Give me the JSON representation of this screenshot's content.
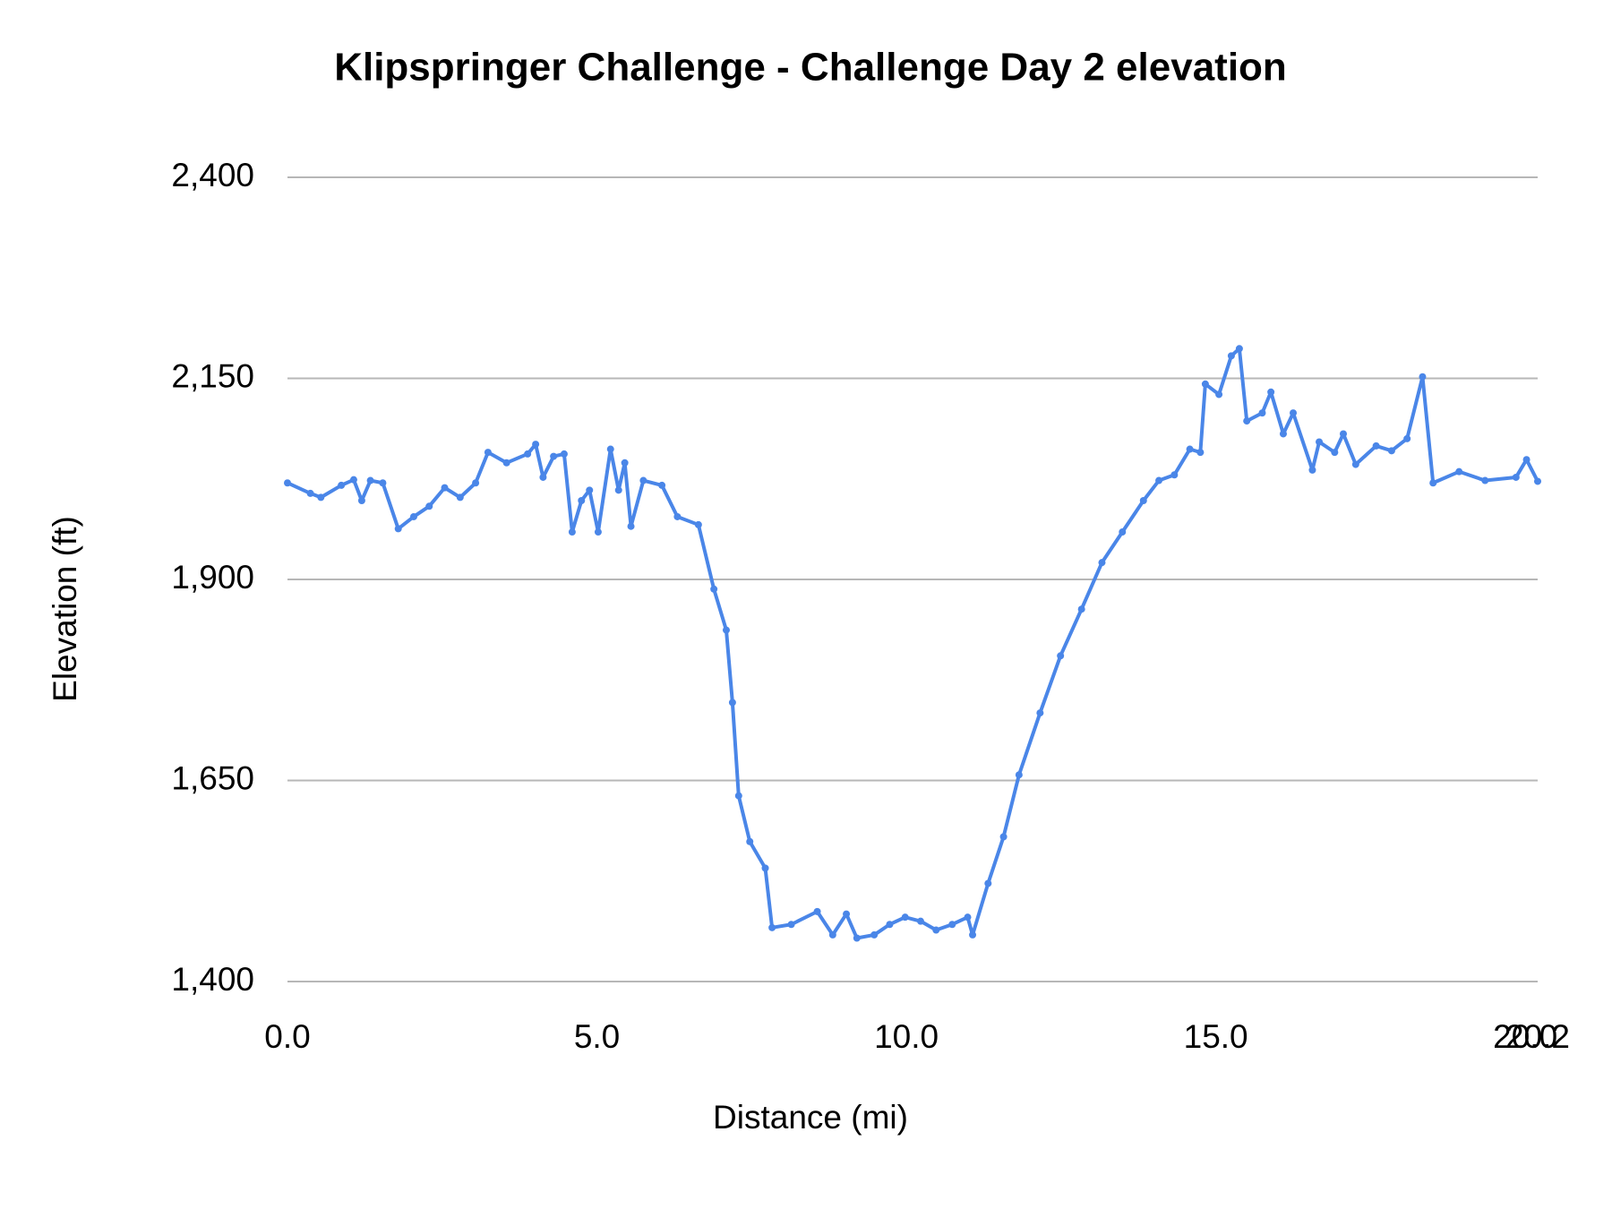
{
  "chart_data": {
    "type": "line",
    "title": "Klipspringer Challenge - Challenge Day 2 elevation",
    "x_label": "Distance (mi)",
    "y_label": "Elevation (ft)",
    "x": [
      0,
      0.37,
      0.54,
      0.87,
      1.07,
      1.2,
      1.34,
      1.54,
      1.79,
      2.04,
      2.29,
      2.54,
      2.79,
      3.04,
      3.24,
      3.54,
      3.88,
      4.01,
      4.13,
      4.3,
      4.47,
      4.6,
      4.75,
      4.88,
      5.02,
      5.22,
      5.35,
      5.45,
      5.55,
      5.75,
      6.05,
      6.3,
      6.64,
      6.89,
      7.09,
      7.19,
      7.29,
      7.47,
      7.72,
      7.83,
      8.14,
      8.56,
      8.81,
      9.03,
      9.2,
      9.48,
      9.73,
      9.98,
      10.23,
      10.48,
      10.74,
      10.99,
      11.07,
      11.32,
      11.57,
      11.82,
      12.16,
      12.49,
      12.83,
      13.16,
      13.49,
      13.83,
      14.08,
      14.33,
      14.58,
      14.75,
      14.83,
      15.05,
      15.25,
      15.38,
      15.5,
      15.75,
      15.89,
      16.09,
      16.25,
      16.56,
      16.67,
      16.92,
      17.06,
      17.26,
      17.59,
      17.84,
      18.09,
      18.34,
      18.51,
      18.93,
      19.35,
      19.85,
      20.02,
      20.2
    ],
    "series": [
      {
        "name": "Elevation",
        "color": "#4a86e8",
        "values": [
          2020,
          2007,
          2002,
          2017,
          2024,
          1998,
          2023,
          2020,
          1963,
          1978,
          1991,
          2014,
          2002,
          2020,
          2058,
          2045,
          2056,
          2068,
          2027,
          2053,
          2056,
          1959,
          1998,
          2011,
          1959,
          2062,
          2011,
          2045,
          1966,
          2023,
          2017,
          1978,
          1968,
          1888,
          1837,
          1747,
          1631,
          1574,
          1541,
          1467,
          1471,
          1487,
          1458,
          1484,
          1454,
          1458,
          1471,
          1480,
          1475,
          1464,
          1471,
          1480,
          1458,
          1522,
          1580,
          1657,
          1734,
          1805,
          1863,
          1921,
          1959,
          1998,
          2023,
          2030,
          2062,
          2058,
          2143,
          2130,
          2178,
          2187,
          2097,
          2107,
          2133,
          2081,
          2107,
          2036,
          2071,
          2058,
          2081,
          2043,
          2066,
          2060,
          2075,
          2152,
          2020,
          2034,
          2023,
          2027,
          2049,
          2022
        ]
      }
    ],
    "xlim": [
      0,
      20.2
    ],
    "xticks": [
      {
        "value": 0,
        "label": "0.0"
      },
      {
        "value": 5,
        "label": "5.0"
      },
      {
        "value": 10,
        "label": "10.0"
      },
      {
        "value": 15,
        "label": "15.0"
      },
      {
        "value": 20,
        "label": "20.0"
      },
      {
        "value": 20.2,
        "label": "20.2"
      }
    ],
    "ylim": [
      1400,
      2400
    ],
    "yticks": [
      {
        "value": 1400,
        "label": "1,400"
      },
      {
        "value": 1650,
        "label": "1,650"
      },
      {
        "value": 1900,
        "label": "1,900"
      },
      {
        "value": 2150,
        "label": "2,150"
      },
      {
        "value": 2400,
        "label": "2,400"
      }
    ],
    "grid": true
  }
}
